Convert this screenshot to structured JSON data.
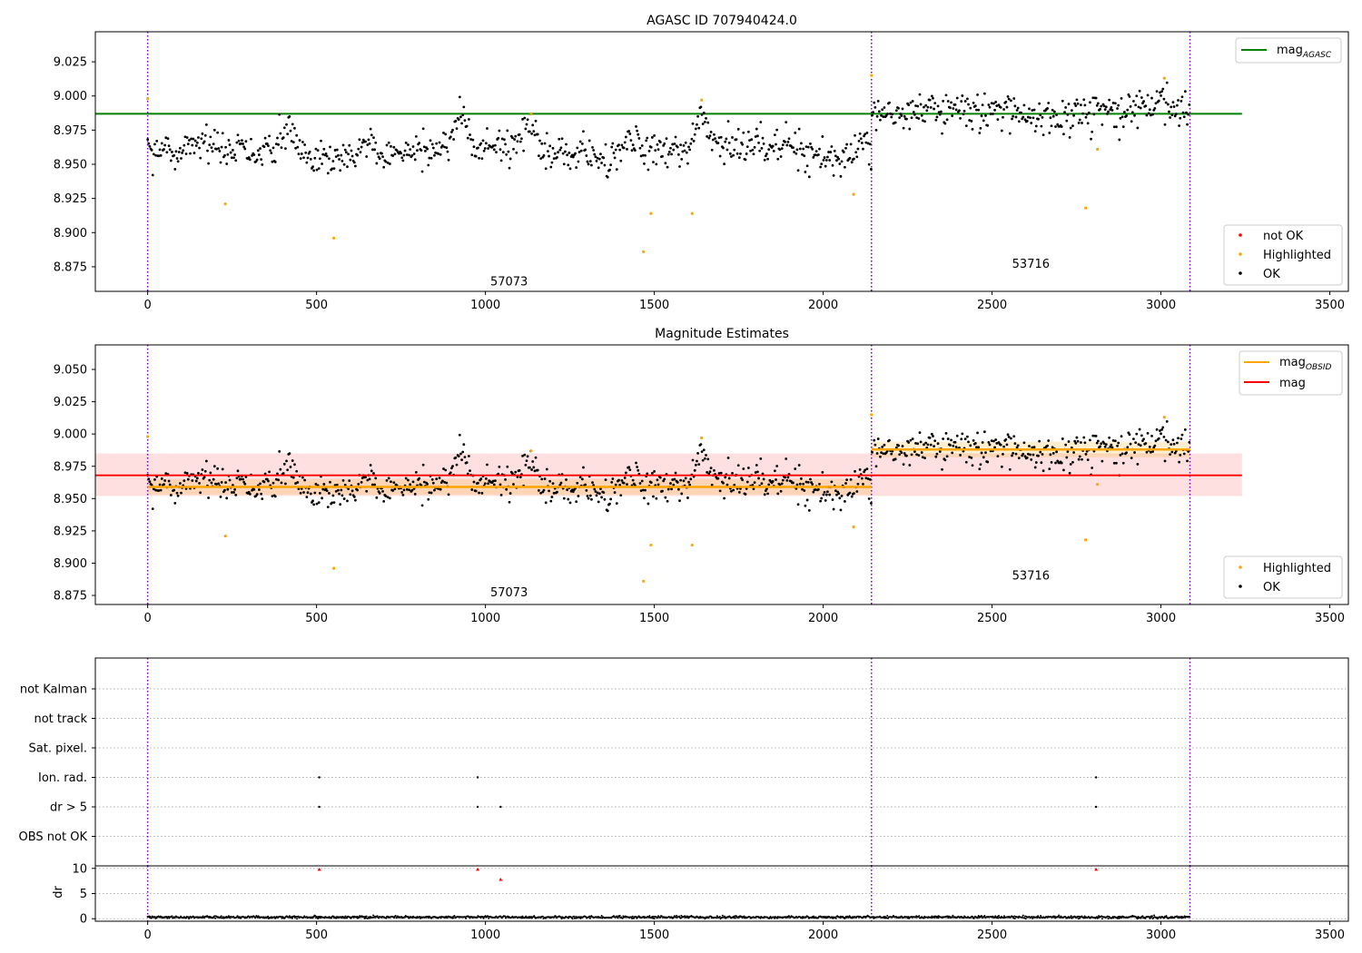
{
  "chart_data": [
    {
      "type": "scatter",
      "title": "AGASC ID 707940424.0",
      "xlim": [
        -155,
        3555
      ],
      "ylim": [
        8.857,
        9.047
      ],
      "x_ticks": [
        0,
        500,
        1000,
        1500,
        2000,
        2500,
        3000,
        3500
      ],
      "y_ticks": [
        8.875,
        8.9,
        8.925,
        8.95,
        8.975,
        9.0,
        9.025
      ],
      "y_tick_labels": [
        "8.875",
        "8.900",
        "8.925",
        "8.950",
        "8.975",
        "9.000",
        "9.025"
      ],
      "legend_lines": [
        {
          "name": "mag_AGASC",
          "main": "mag",
          "sub": "AGASC",
          "color": "#008000"
        }
      ],
      "legend_points": [
        {
          "name": "not OK",
          "color": "#ff0000"
        },
        {
          "name": "Highlighted",
          "color": "#ffa500"
        },
        {
          "name": "OK",
          "color": "#000000"
        }
      ],
      "reference_lines": [
        {
          "label": "mag_AGASC",
          "y": 8.987,
          "x_range": [
            -155,
            3240
          ],
          "color": "#008000"
        }
      ],
      "obs_boundaries": [
        0,
        2143,
        3086
      ],
      "obs_labels": [
        {
          "text": "57073",
          "x": 1070,
          "y": 8.864
        },
        {
          "text": "53716",
          "x": 2615,
          "y": 8.877
        }
      ],
      "series": [
        {
          "name": "OK",
          "color": "#000000",
          "note": "dense scatter ~3100 points",
          "segments": [
            {
              "x_range": [
                0,
                2143
              ],
              "mean": 8.959,
              "spread": 0.008
            },
            {
              "x_range": [
                2143,
                3086
              ],
              "mean": 8.988,
              "spread": 0.008
            }
          ]
        },
        {
          "name": "Highlighted",
          "color": "#ffa500",
          "x": [
            0,
            230,
            551,
            1135,
            1468,
            1490,
            1612,
            1640,
            2090,
            2143,
            2777,
            2812,
            3010
          ],
          "y": [
            8.998,
            8.921,
            8.896,
            8.987,
            8.886,
            8.914,
            8.914,
            8.997,
            8.928,
            9.015,
            8.918,
            8.961,
            9.013
          ]
        }
      ]
    },
    {
      "type": "scatter",
      "title": "Magnitude Estimates",
      "xlim": [
        -155,
        3555
      ],
      "ylim": [
        8.868,
        9.069
      ],
      "x_ticks": [
        0,
        500,
        1000,
        1500,
        2000,
        2500,
        3000,
        3500
      ],
      "y_ticks": [
        8.875,
        8.9,
        8.925,
        8.95,
        8.975,
        9.0,
        9.025,
        9.05
      ],
      "y_tick_labels": [
        "8.875",
        "8.900",
        "8.925",
        "8.950",
        "8.975",
        "9.000",
        "9.025",
        "9.050"
      ],
      "legend_lines": [
        {
          "name": "mag_OBSID",
          "main": "mag",
          "sub": "OBSID",
          "color": "#ffa500"
        },
        {
          "name": "mag",
          "main": "mag",
          "sub": "",
          "color": "#ff0000"
        }
      ],
      "legend_points": [
        {
          "name": "Highlighted",
          "color": "#ffa500"
        },
        {
          "name": "OK",
          "color": "#000000"
        }
      ],
      "mag_band": {
        "y": 8.968,
        "y_range": [
          8.952,
          8.985
        ],
        "x_range": [
          -155,
          3240
        ],
        "color": "#ff0000"
      },
      "obsid_mags": [
        {
          "x_range": [
            0,
            2143
          ],
          "y": 8.959
        },
        {
          "x_range": [
            2143,
            3086
          ],
          "y": 8.988
        }
      ],
      "obs_boundaries": [
        0,
        2143,
        3086
      ],
      "obs_labels": [
        {
          "text": "57073",
          "x": 1070,
          "y": 8.877
        },
        {
          "text": "53716",
          "x": 2615,
          "y": 8.89
        }
      ]
    },
    {
      "type": "scatter",
      "title": "",
      "xlim": [
        -155,
        3555
      ],
      "categories": [
        "not Kalman",
        "not track",
        "Sat. pixel.",
        "Ion. rad.",
        "dr > 5",
        "OBS not OK"
      ],
      "flags": {
        "Ion. rad.": [
          508,
          977,
          2808
        ],
        "dr > 5": [
          508,
          977,
          1045,
          2808
        ]
      },
      "obs_boundaries": [
        0,
        2143,
        3086
      ]
    },
    {
      "type": "scatter",
      "title": "",
      "ylabel": "dr",
      "xlim": [
        -155,
        3555
      ],
      "ylim": [
        -0.5,
        10.5
      ],
      "x_ticks": [
        0,
        500,
        1000,
        1500,
        2000,
        2500,
        3000,
        3500
      ],
      "y_ticks": [
        0,
        5,
        10
      ],
      "y_tick_labels": [
        "0",
        "5",
        "10"
      ],
      "series": [
        {
          "name": "dr",
          "color": "#000000",
          "note": "near zero, ~0.3 avg"
        },
        {
          "name": "dr > 5",
          "color": "#ff0000",
          "x": [
            508,
            977,
            1045,
            2808
          ],
          "y": [
            9.8,
            9.8,
            7.8,
            9.8
          ]
        }
      ],
      "obs_boundaries": [
        0,
        2143,
        3086
      ]
    }
  ]
}
